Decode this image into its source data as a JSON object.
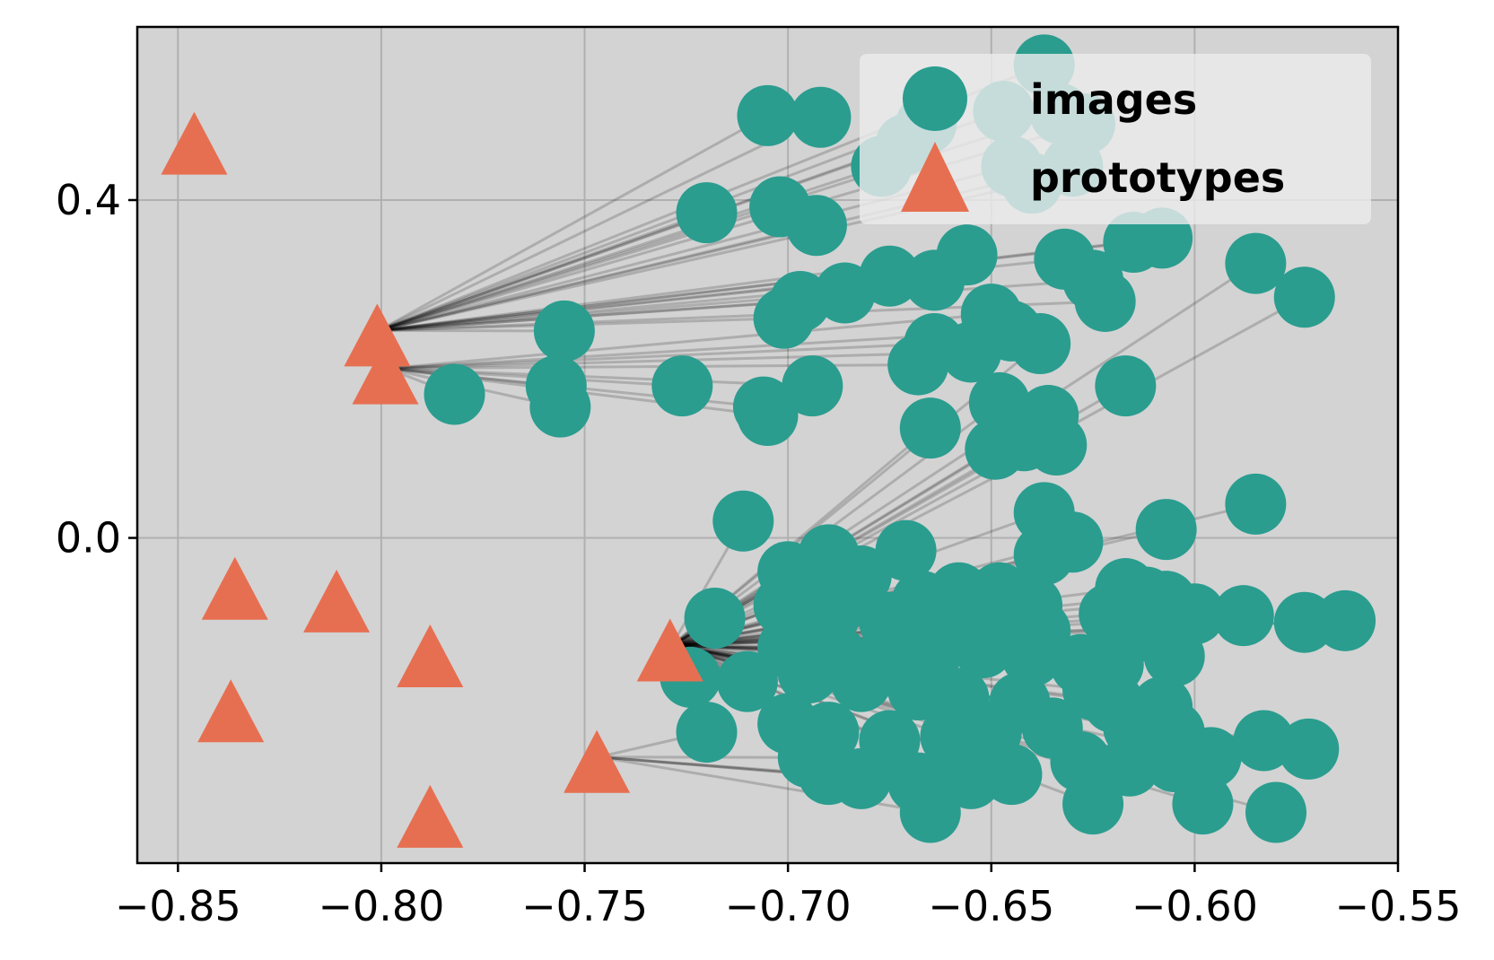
{
  "chart_data": {
    "type": "scatter",
    "title": "",
    "xlabel": "",
    "ylabel": "",
    "xlim": [
      -0.86,
      -0.55
    ],
    "ylim": [
      -0.385,
      0.605
    ],
    "grid": true,
    "legend_position": "top-right",
    "x_ticks": [
      -0.85,
      -0.8,
      -0.75,
      -0.7,
      -0.65,
      -0.6,
      -0.55
    ],
    "x_tick_labels": [
      "−0.85",
      "−0.80",
      "−0.75",
      "−0.70",
      "−0.65",
      "−0.60",
      "−0.55"
    ],
    "y_ticks": [
      0.4,
      0.0
    ],
    "y_tick_labels": [
      "0.4",
      "0.0"
    ],
    "colors": {
      "images": "#2a9d8f",
      "prototypes": "#e76f51",
      "links": "#000000",
      "axes_background": "#d3d3d3",
      "grid": "#b0b0b0"
    },
    "series": [
      {
        "name": "images",
        "marker": "circle",
        "points": [
          [
            -0.637,
            0.56
          ],
          [
            -0.705,
            0.5
          ],
          [
            -0.692,
            0.498
          ],
          [
            -0.666,
            0.49
          ],
          [
            -0.671,
            0.466
          ],
          [
            -0.677,
            0.44
          ],
          [
            -0.647,
            0.505
          ],
          [
            -0.633,
            0.502
          ],
          [
            -0.627,
            0.49
          ],
          [
            -0.645,
            0.44
          ],
          [
            -0.64,
            0.42
          ],
          [
            -0.63,
            0.44
          ],
          [
            -0.72,
            0.385
          ],
          [
            -0.702,
            0.392
          ],
          [
            -0.693,
            0.37
          ],
          [
            -0.608,
            0.355
          ],
          [
            -0.615,
            0.35
          ],
          [
            -0.632,
            0.33
          ],
          [
            -0.625,
            0.305
          ],
          [
            -0.656,
            0.335
          ],
          [
            -0.585,
            0.325
          ],
          [
            -0.573,
            0.285
          ],
          [
            -0.664,
            0.305
          ],
          [
            -0.675,
            0.31
          ],
          [
            -0.686,
            0.29
          ],
          [
            -0.697,
            0.28
          ],
          [
            -0.701,
            0.26
          ],
          [
            -0.622,
            0.28
          ],
          [
            -0.755,
            0.245
          ],
          [
            -0.65,
            0.265
          ],
          [
            -0.645,
            0.245
          ],
          [
            -0.664,
            0.23
          ],
          [
            -0.655,
            0.22
          ],
          [
            -0.638,
            0.23
          ],
          [
            -0.668,
            0.205
          ],
          [
            -0.617,
            0.18
          ],
          [
            -0.782,
            0.17
          ],
          [
            -0.757,
            0.18
          ],
          [
            -0.756,
            0.155
          ],
          [
            -0.726,
            0.18
          ],
          [
            -0.694,
            0.18
          ],
          [
            -0.706,
            0.155
          ],
          [
            -0.705,
            0.145
          ],
          [
            -0.648,
            0.16
          ],
          [
            -0.636,
            0.145
          ],
          [
            -0.665,
            0.13
          ],
          [
            -0.642,
            0.115
          ],
          [
            -0.634,
            0.11
          ],
          [
            -0.649,
            0.105
          ],
          [
            -0.637,
            0.03
          ],
          [
            -0.585,
            0.04
          ],
          [
            -0.711,
            0.02
          ],
          [
            -0.607,
            0.01
          ],
          [
            -0.63,
            -0.005
          ],
          [
            -0.637,
            -0.02
          ],
          [
            -0.69,
            -0.02
          ],
          [
            -0.671,
            -0.015
          ],
          [
            -0.7,
            -0.04
          ],
          [
            -0.682,
            -0.045
          ],
          [
            -0.695,
            -0.055
          ],
          [
            -0.685,
            -0.07
          ],
          [
            -0.667,
            -0.075
          ],
          [
            -0.658,
            -0.065
          ],
          [
            -0.648,
            -0.065
          ],
          [
            -0.64,
            -0.08
          ],
          [
            -0.617,
            -0.06
          ],
          [
            -0.612,
            -0.07
          ],
          [
            -0.607,
            -0.075
          ],
          [
            -0.621,
            -0.09
          ],
          [
            -0.6,
            -0.09
          ],
          [
            -0.588,
            -0.092
          ],
          [
            -0.573,
            -0.1
          ],
          [
            -0.563,
            -0.098
          ],
          [
            -0.718,
            -0.095
          ],
          [
            -0.701,
            -0.08
          ],
          [
            -0.69,
            -0.095
          ],
          [
            -0.675,
            -0.1
          ],
          [
            -0.66,
            -0.105
          ],
          [
            -0.648,
            -0.1
          ],
          [
            -0.638,
            -0.11
          ],
          [
            -0.612,
            -0.11
          ],
          [
            -0.605,
            -0.14
          ],
          [
            -0.7,
            -0.13
          ],
          [
            -0.688,
            -0.14
          ],
          [
            -0.675,
            -0.135
          ],
          [
            -0.665,
            -0.14
          ],
          [
            -0.652,
            -0.13
          ],
          [
            -0.64,
            -0.14
          ],
          [
            -0.628,
            -0.15
          ],
          [
            -0.62,
            -0.15
          ],
          [
            -0.724,
            -0.165
          ],
          [
            -0.71,
            -0.17
          ],
          [
            -0.695,
            -0.16
          ],
          [
            -0.682,
            -0.17
          ],
          [
            -0.668,
            -0.18
          ],
          [
            -0.658,
            -0.19
          ],
          [
            -0.643,
            -0.195
          ],
          [
            -0.625,
            -0.18
          ],
          [
            -0.62,
            -0.195
          ],
          [
            -0.608,
            -0.2
          ],
          [
            -0.72,
            -0.23
          ],
          [
            -0.7,
            -0.22
          ],
          [
            -0.69,
            -0.23
          ],
          [
            -0.675,
            -0.24
          ],
          [
            -0.66,
            -0.235
          ],
          [
            -0.65,
            -0.23
          ],
          [
            -0.635,
            -0.225
          ],
          [
            -0.615,
            -0.225
          ],
          [
            -0.605,
            -0.23
          ],
          [
            -0.583,
            -0.24
          ],
          [
            -0.572,
            -0.25
          ],
          [
            -0.596,
            -0.26
          ],
          [
            -0.605,
            -0.265
          ],
          [
            -0.616,
            -0.27
          ],
          [
            -0.628,
            -0.265
          ],
          [
            -0.645,
            -0.28
          ],
          [
            -0.655,
            -0.285
          ],
          [
            -0.668,
            -0.29
          ],
          [
            -0.682,
            -0.285
          ],
          [
            -0.69,
            -0.28
          ],
          [
            -0.695,
            -0.26
          ],
          [
            -0.625,
            -0.315
          ],
          [
            -0.598,
            -0.315
          ],
          [
            -0.58,
            -0.325
          ],
          [
            -0.665,
            -0.325
          ]
        ]
      },
      {
        "name": "prototypes",
        "marker": "triangle",
        "points": [
          [
            -0.846,
            0.462
          ],
          [
            -0.801,
            0.235
          ],
          [
            -0.799,
            0.19
          ],
          [
            -0.836,
            -0.065
          ],
          [
            -0.811,
            -0.08
          ],
          [
            -0.788,
            -0.145
          ],
          [
            -0.729,
            -0.138
          ],
          [
            -0.837,
            -0.21
          ],
          [
            -0.747,
            -0.27
          ],
          [
            -0.788,
            -0.335
          ]
        ]
      }
    ]
  }
}
